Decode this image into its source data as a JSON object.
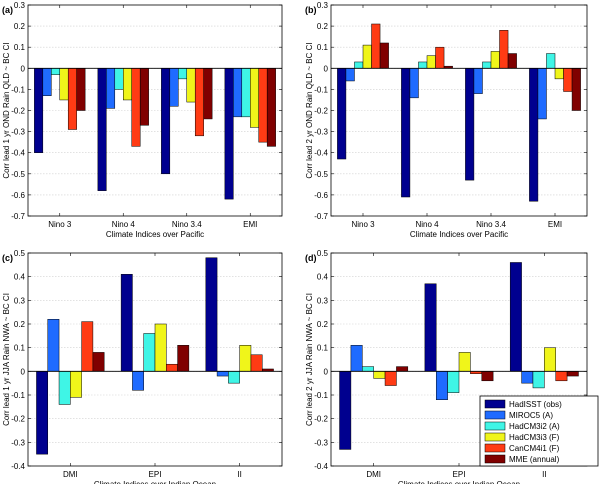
{
  "series_colors": [
    "#00008f",
    "#1f6bff",
    "#3ff5e6",
    "#f0f51a",
    "#ff3b14",
    "#800000"
  ],
  "legend": {
    "entries": [
      "HadISST (obs)",
      "MIROC5 (A)",
      "HadCM3i2 (A)",
      "HadCM3i3 (F)",
      "CanCM4i1 (F)",
      "MME (annual)"
    ]
  },
  "chart_data": [
    {
      "type": "bar",
      "panel_label": "(a)",
      "ylabel": "Corr lead 1 yr OND Rain QLD ~ BC CI",
      "xlabel": "Climate Indices over Pacific",
      "categories": [
        "Nino 3",
        "Nino 4",
        "Nino 3.4",
        "EMI"
      ],
      "ylim": [
        -0.7,
        0.3
      ],
      "yticks": [
        0.3,
        0.2,
        0.1,
        0,
        -0.1,
        -0.2,
        -0.3,
        -0.4,
        -0.5,
        -0.6,
        -0.7
      ],
      "ytick_labels": [
        "0.3",
        "0.2",
        "0.1",
        "0",
        "-0.1",
        "-0.2",
        "-0.3",
        "-0.4",
        "-0.5",
        "-0.6",
        "-0.7"
      ],
      "series": [
        {
          "name": "HadISST (obs)",
          "values": [
            -0.4,
            -0.58,
            -0.5,
            -0.62
          ]
        },
        {
          "name": "MIROC5 (A)",
          "values": [
            -0.13,
            -0.19,
            -0.18,
            -0.23
          ]
        },
        {
          "name": "HadCM3i2 (A)",
          "values": [
            -0.03,
            -0.1,
            -0.05,
            -0.23
          ]
        },
        {
          "name": "HadCM3i3 (F)",
          "values": [
            -0.15,
            -0.15,
            -0.16,
            -0.28
          ]
        },
        {
          "name": "CanCM4i1 (F)",
          "values": [
            -0.29,
            -0.37,
            -0.32,
            -0.35
          ]
        },
        {
          "name": "MME (annual)",
          "values": [
            -0.2,
            -0.27,
            -0.24,
            -0.37
          ]
        }
      ]
    },
    {
      "type": "bar",
      "panel_label": "(b)",
      "ylabel": "Corr lead 2 yr OND Rain QLD ~ BC CI",
      "xlabel": "Climate Indices over Pacific",
      "categories": [
        "Nino 3",
        "Nino 4",
        "Nino 3.4",
        "EMI"
      ],
      "ylim": [
        -0.7,
        0.3
      ],
      "yticks": [
        0.3,
        0.2,
        0.1,
        0,
        -0.1,
        -0.2,
        -0.3,
        -0.4,
        -0.5,
        -0.6,
        -0.7
      ],
      "ytick_labels": [
        "0.3",
        "0.2",
        "0.1",
        "0",
        "-0.1",
        "-0.2",
        "-0.3",
        "-0.4",
        "-0.5",
        "-0.6",
        "-0.7"
      ],
      "series": [
        {
          "name": "HadISST (obs)",
          "values": [
            -0.43,
            -0.61,
            -0.53,
            -0.63
          ]
        },
        {
          "name": "MIROC5 (A)",
          "values": [
            -0.06,
            -0.14,
            -0.12,
            -0.24
          ]
        },
        {
          "name": "HadCM3i2 (A)",
          "values": [
            0.03,
            0.03,
            0.03,
            0.07
          ]
        },
        {
          "name": "HadCM3i3 (F)",
          "values": [
            0.11,
            0.06,
            0.08,
            -0.05
          ]
        },
        {
          "name": "CanCM4i1 (F)",
          "values": [
            0.21,
            0.1,
            0.18,
            -0.11
          ]
        },
        {
          "name": "MME (annual)",
          "values": [
            0.12,
            0.01,
            0.07,
            -0.2
          ]
        }
      ]
    },
    {
      "type": "bar",
      "panel_label": "(c)",
      "ylabel": "Corr lead 1 yr JJA Rain NWA ~ BC CI",
      "xlabel": "Climate Indices over Indian Ocean",
      "categories": [
        "DMI",
        "EPI",
        "II"
      ],
      "ylim": [
        -0.4,
        0.5
      ],
      "yticks": [
        0.5,
        0.4,
        0.3,
        0.2,
        0.1,
        0,
        -0.1,
        -0.2,
        -0.3,
        -0.4
      ],
      "ytick_labels": [
        "0.5",
        "0.4",
        "0.3",
        "0.2",
        "0.1",
        "0",
        "-0.1",
        "-0.2",
        "-0.3",
        "-0.4"
      ],
      "series": [
        {
          "name": "HadISST (obs)",
          "values": [
            -0.35,
            0.41,
            0.48
          ]
        },
        {
          "name": "MIROC5 (A)",
          "values": [
            0.22,
            -0.08,
            -0.02
          ]
        },
        {
          "name": "HadCM3i2 (A)",
          "values": [
            -0.14,
            0.16,
            -0.05
          ]
        },
        {
          "name": "HadCM3i3 (F)",
          "values": [
            -0.11,
            0.2,
            0.11
          ]
        },
        {
          "name": "CanCM4i1 (F)",
          "values": [
            0.21,
            0.03,
            0.07
          ]
        },
        {
          "name": "MME (annual)",
          "values": [
            0.08,
            0.11,
            0.01
          ]
        }
      ]
    },
    {
      "type": "bar",
      "panel_label": "(d)",
      "ylabel": "Corr lead 2 yr JJA Rain NWA ~ BC CI",
      "xlabel": "Climate Indices over Indian Ocean",
      "categories": [
        "DMI",
        "EPI",
        "II"
      ],
      "ylim": [
        -0.4,
        0.5
      ],
      "yticks": [
        0.5,
        0.4,
        0.3,
        0.2,
        0.1,
        0,
        -0.1,
        -0.2,
        -0.3,
        -0.4
      ],
      "ytick_labels": [
        "0.5",
        "0.4",
        "0.3",
        "0.2",
        "0.1",
        "0",
        "-0.1",
        "-0.2",
        "-0.3",
        "-0.4"
      ],
      "series": [
        {
          "name": "HadISST (obs)",
          "values": [
            -0.33,
            0.37,
            0.46
          ]
        },
        {
          "name": "MIROC5 (A)",
          "values": [
            0.11,
            -0.12,
            -0.05
          ]
        },
        {
          "name": "HadCM3i2 (A)",
          "values": [
            0.02,
            -0.09,
            -0.07
          ]
        },
        {
          "name": "HadCM3i3 (F)",
          "values": [
            -0.03,
            0.08,
            0.1
          ]
        },
        {
          "name": "CanCM4i1 (F)",
          "values": [
            -0.06,
            -0.01,
            -0.04
          ]
        },
        {
          "name": "MME (annual)",
          "values": [
            0.02,
            -0.04,
            -0.02
          ]
        }
      ]
    }
  ]
}
